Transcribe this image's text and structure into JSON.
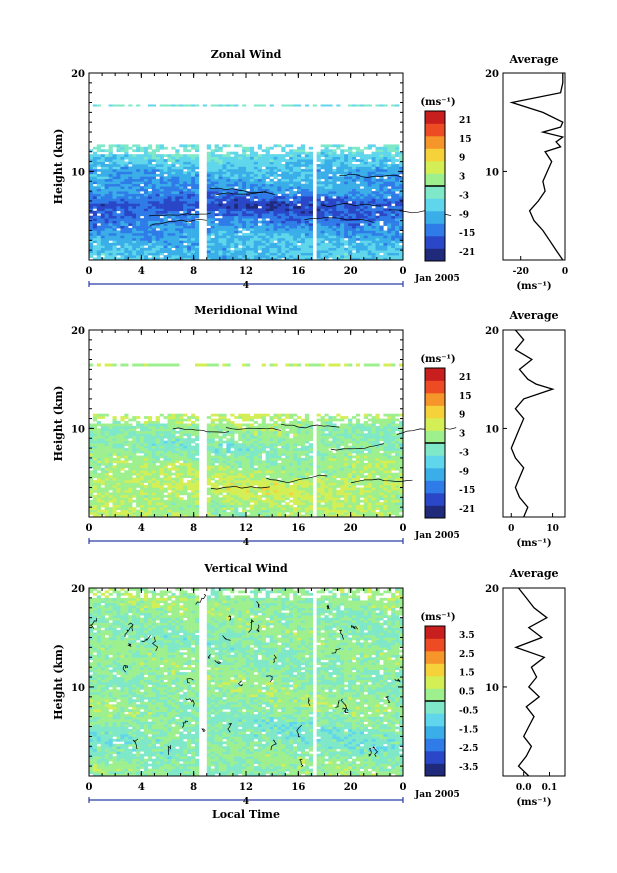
{
  "figure": {
    "date_label": "Jan 2005",
    "day_label": "4",
    "x_axis_label": "Local Time",
    "y_axis_label": "Height (km)",
    "unit_label": "(ms⁻¹)",
    "average_title": "Average"
  },
  "chart_data": [
    {
      "type": "heatmap",
      "title": "Zonal Wind",
      "xlabel": "",
      "ylabel": "Height (km)",
      "x_ticks": [
        "0",
        "4",
        "8",
        "12",
        "16",
        "20",
        "0"
      ],
      "y_ticks": [
        "10",
        "20"
      ],
      "xlim": [
        0,
        24
      ],
      "ylim": [
        1,
        20
      ],
      "colorbar": {
        "label": "(ms⁻¹)",
        "ticks": [
          "21",
          "15",
          "9",
          "3",
          "-3",
          "-9",
          "-15",
          "-21"
        ],
        "range": [
          -24,
          24
        ],
        "zero_line": 0
      },
      "data_gaps_hours": [
        [
          8.5,
          8.9
        ],
        [
          17.1,
          17.5
        ]
      ],
      "valid_height_km": [
        1,
        12.7
      ],
      "upper_layer_km": [
        16.6,
        16.8
      ],
      "profile_rows": [
        {
          "height": 1.5,
          "value": -8
        },
        {
          "height": 3,
          "value": -9
        },
        {
          "height": 5,
          "value": -14
        },
        {
          "height": 6.5,
          "value": -18
        },
        {
          "height": 8,
          "value": -12
        },
        {
          "height": 10,
          "value": -9
        },
        {
          "height": 12,
          "value": -4
        }
      ],
      "average_profile": {
        "title": "Average",
        "xlabel": "(ms⁻¹)",
        "x_ticks": [
          "-20",
          "0"
        ],
        "xlim": [
          -28,
          0
        ],
        "y_ticks": [
          "10",
          "20"
        ],
        "height": [
          1,
          2,
          3,
          4,
          5,
          6,
          7,
          8,
          9,
          10,
          11,
          12,
          12.5,
          13,
          13.5,
          14,
          14.5,
          15,
          16,
          17,
          18,
          19,
          20
        ],
        "value": [
          -1,
          -4,
          -7,
          -10,
          -14,
          -16,
          -12,
          -9,
          -10,
          -8,
          -6,
          -9,
          -2,
          -4,
          -1,
          -10,
          -2,
          -1,
          -10,
          -24,
          -2,
          -1,
          -1
        ]
      }
    },
    {
      "type": "heatmap",
      "title": "Meridional Wind",
      "xlabel": "",
      "ylabel": "Height (km)",
      "x_ticks": [
        "0",
        "4",
        "8",
        "12",
        "16",
        "20",
        "0"
      ],
      "y_ticks": [
        "10",
        "20"
      ],
      "xlim": [
        0,
        24
      ],
      "ylim": [
        1,
        20
      ],
      "colorbar": {
        "label": "(ms⁻¹)",
        "ticks": [
          "21",
          "15",
          "9",
          "3",
          "-3",
          "-9",
          "-15",
          "-21"
        ],
        "range": [
          -24,
          24
        ],
        "zero_line": 0
      },
      "data_gaps_hours": [
        [
          8.5,
          8.9
        ],
        [
          17.1,
          17.5
        ]
      ],
      "valid_height_km": [
        1,
        11.5
      ],
      "upper_layer_km": [
        16.3,
        16.6
      ],
      "profile_rows": [
        {
          "height": 2,
          "value": 3
        },
        {
          "height": 4,
          "value": 5
        },
        {
          "height": 6,
          "value": 2
        },
        {
          "height": 8,
          "value": -1
        },
        {
          "height": 10,
          "value": 1
        },
        {
          "height": 11,
          "value": 4
        }
      ],
      "average_profile": {
        "title": "Average",
        "xlabel": "(ms⁻¹)",
        "x_ticks": [
          "0",
          "10"
        ],
        "xlim": [
          -2,
          13
        ],
        "y_ticks": [
          "10",
          "20"
        ],
        "height": [
          1,
          2,
          3,
          4,
          5,
          6,
          7,
          8,
          9,
          10,
          11,
          12,
          13,
          14,
          14.5,
          15,
          16,
          17,
          18,
          19,
          20
        ],
        "value": [
          3,
          4,
          2,
          1,
          2,
          3,
          1,
          0,
          1,
          2,
          3,
          1,
          3,
          10,
          6,
          4,
          2,
          5,
          1,
          3,
          1
        ]
      }
    },
    {
      "type": "heatmap",
      "title": "Vertical Wind",
      "xlabel": "Local Time",
      "ylabel": "Height (km)",
      "x_ticks": [
        "0",
        "4",
        "8",
        "12",
        "16",
        "20",
        "0"
      ],
      "y_ticks": [
        "10",
        "20"
      ],
      "xlim": [
        0,
        24
      ],
      "ylim": [
        1,
        20
      ],
      "colorbar": {
        "label": "(ms⁻¹)",
        "ticks": [
          "3.5",
          "2.5",
          "1.5",
          "0.5",
          "-0.5",
          "-1.5",
          "-2.5",
          "-3.5"
        ],
        "range": [
          -4,
          4
        ],
        "zero_line": 0
      },
      "data_gaps_hours": [
        [
          8.5,
          8.9
        ],
        [
          17.1,
          17.5
        ]
      ],
      "valid_height_km": [
        1,
        20
      ],
      "upper_layer_km": null,
      "profile_rows": [
        {
          "height": 2,
          "value": 0.1
        },
        {
          "height": 5,
          "value": -0.3
        },
        {
          "height": 8,
          "value": 0.2
        },
        {
          "height": 11,
          "value": 0.1
        },
        {
          "height": 15,
          "value": 0.0
        },
        {
          "height": 18,
          "value": 0.2
        }
      ],
      "average_profile": {
        "title": "Average",
        "xlabel": "(ms⁻¹)",
        "x_ticks": [
          "0.0",
          "0.1"
        ],
        "xlim": [
          -0.08,
          0.16
        ],
        "y_ticks": [
          "10",
          "20"
        ],
        "height": [
          1,
          2,
          3,
          4,
          5,
          6,
          7,
          8,
          9,
          10,
          11,
          12,
          13,
          14,
          15,
          16,
          17,
          18,
          19,
          20
        ],
        "value": [
          0.02,
          -0.02,
          0.01,
          0.03,
          0.0,
          0.02,
          0.04,
          0.01,
          0.06,
          0.02,
          0.05,
          0.03,
          0.08,
          -0.03,
          0.07,
          0.02,
          0.09,
          0.04,
          0.01,
          -0.02
        ]
      }
    }
  ],
  "colors": {
    "scale": [
      "#1f2a7a",
      "#2a47c8",
      "#2f7be8",
      "#3aaee8",
      "#5fd6ec",
      "#7ee8c9",
      "#9ef08f",
      "#d4ee55",
      "#f5d23a",
      "#f5952a",
      "#ec4b24",
      "#c81e1e"
    ],
    "contour": "#000000",
    "axis_blue": "#2a3fa8"
  }
}
